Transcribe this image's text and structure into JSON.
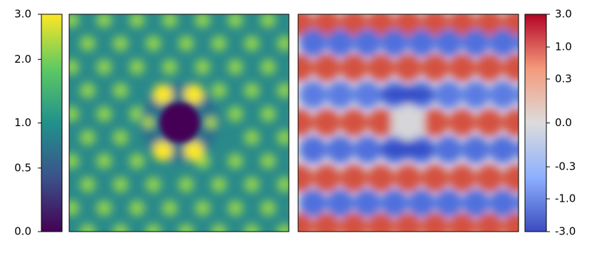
{
  "chart_data": [
    {
      "type": "heatmap",
      "colormap": "viridis",
      "scale": "log1p",
      "clim": [
        0,
        3
      ],
      "ticks": [
        {
          "value": 0,
          "label": "0.0"
        },
        0.5,
        {
          "value": 1,
          "label": "1.0"
        },
        {
          "value": 2,
          "label": "2.0"
        },
        {
          "value": 3,
          "label": "3.0"
        }
      ]
    },
    {
      "type": "heatmap",
      "colormap": "coolwarm",
      "scale": "symlog",
      "clim": [
        -3,
        3
      ],
      "ticks": [
        {
          "value": -3,
          "label": "-3.0"
        },
        {
          "value": -1,
          "label": "-1.0"
        },
        -0.3,
        {
          "value": 0,
          "label": "0.0"
        },
        0.3,
        {
          "value": 1,
          "label": "1.0"
        },
        {
          "value": 3,
          "label": "3.0"
        }
      ]
    }
  ]
}
